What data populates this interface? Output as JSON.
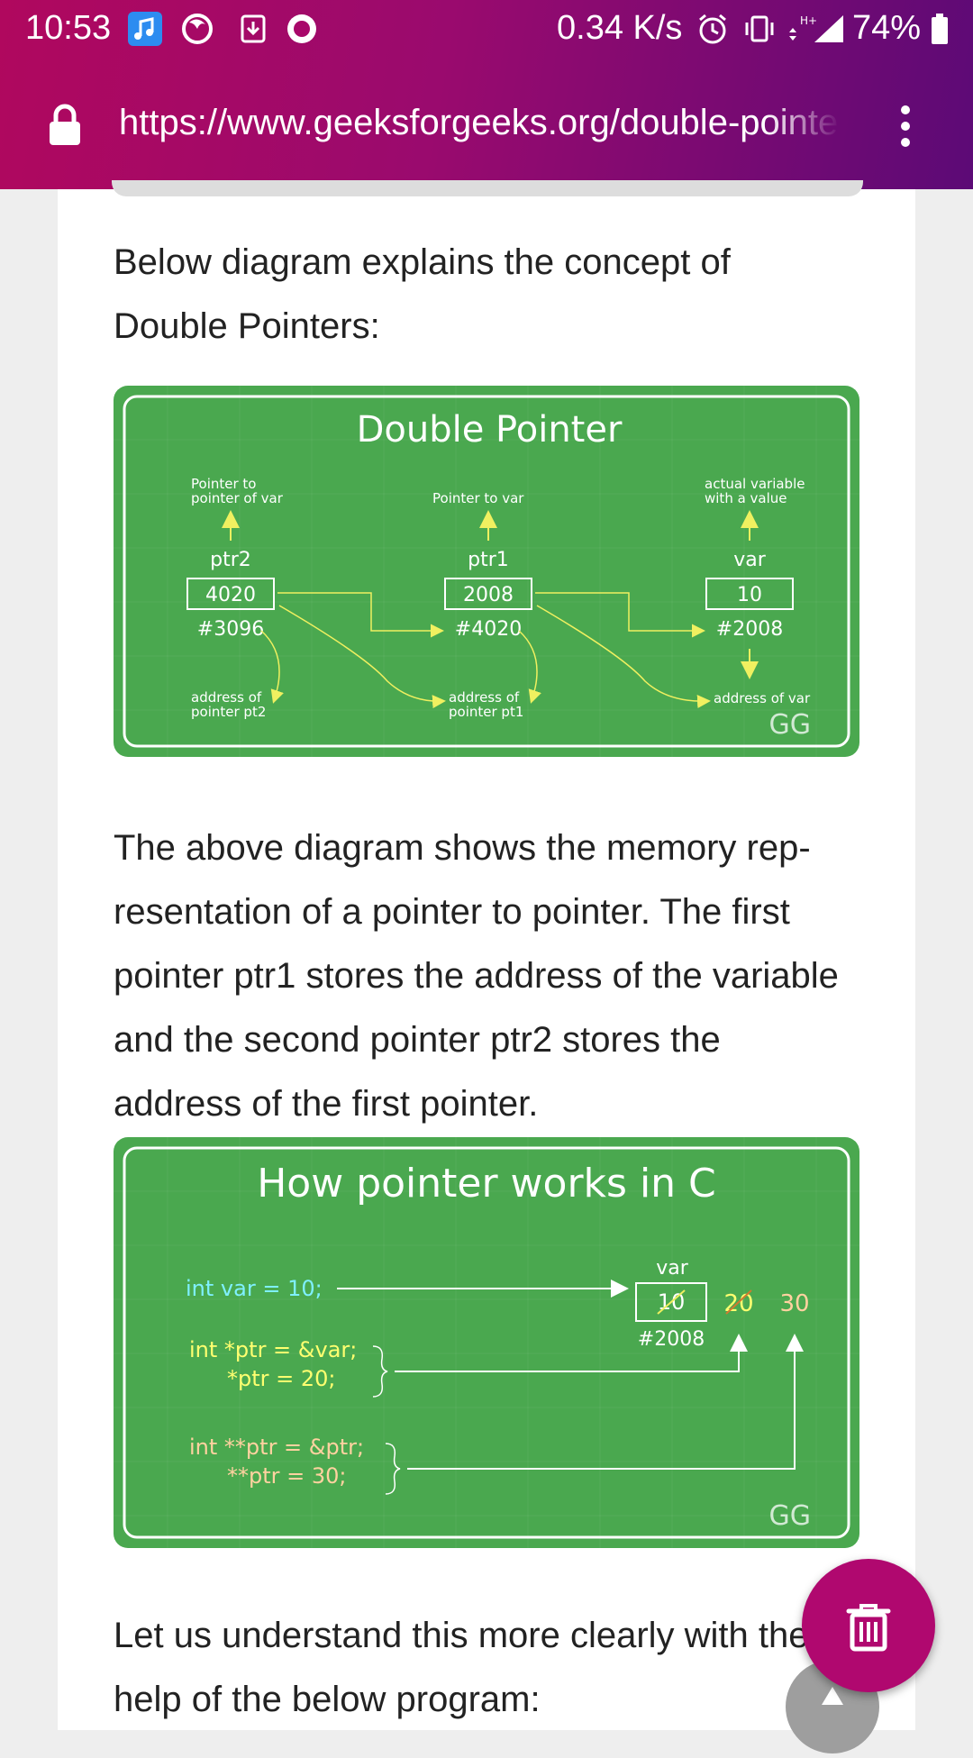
{
  "status_bar": {
    "time": "10:53",
    "speed": "0.34 K/s",
    "battery": "74%",
    "icons": [
      "music-app-icon",
      "firefox-icon",
      "download-icon",
      "record-icon",
      "alarm-icon",
      "vibrate-icon",
      "data-arrows-icon",
      "signal-icon",
      "battery-icon"
    ]
  },
  "browser": {
    "url": "https://www.geeksforgeeks.org/double-pointer-pointer-pointer-c/",
    "icons": [
      "lock-icon",
      "more-vert-icon"
    ]
  },
  "article": {
    "intro": "Below diagram explains the concept of Double Pointers:",
    "body": "The above diagram shows the memory rep­resentation of a pointer to pointer. The first pointer ptr1 stores the address of the vari­able and the second pointer ptr2 stores the address of the first pointer.",
    "outro": "Let us understand this more clearly with the help of the below program:"
  },
  "diagram1": {
    "title": "Double Pointer",
    "cols": [
      {
        "caption1": "Pointer to",
        "caption2": "pointer of var",
        "name": "ptr2",
        "value": "4020",
        "address": "#3096",
        "note1": "address of",
        "note2": "pointer pt2"
      },
      {
        "caption1": "Pointer to  var",
        "caption2": "",
        "name": "ptr1",
        "value": "2008",
        "address": "#4020",
        "note1": "address of",
        "note2": "pointer pt1"
      },
      {
        "caption1": "actual variable",
        "caption2": "with a value",
        "name": "var",
        "value": "10",
        "address": "#2008",
        "note1": "address of var",
        "note2": ""
      }
    ],
    "logo": "GG"
  },
  "diagram2": {
    "title": "How pointer works in C",
    "line1": "int var = 10;",
    "line2a": "int *ptr = &var;",
    "line2b": "*ptr = 20;",
    "line3a": "int **ptr = &ptr;",
    "line3b": "**ptr = 30;",
    "var_label": "var",
    "box_value": "10",
    "address": "#2008",
    "value_2": "20",
    "value_3": "30",
    "logo": "GG"
  },
  "colors": {
    "accent": "#b0085e",
    "figure_green": "#4aa84f",
    "arrow_yellow": "#f0f060",
    "code_cyan": "#7ff0ff",
    "code_yellow": "#ffff70",
    "code_peach": "#ffd2a0"
  },
  "fab": {
    "icons": [
      "delete-icon",
      "scroll-up-icon"
    ]
  }
}
